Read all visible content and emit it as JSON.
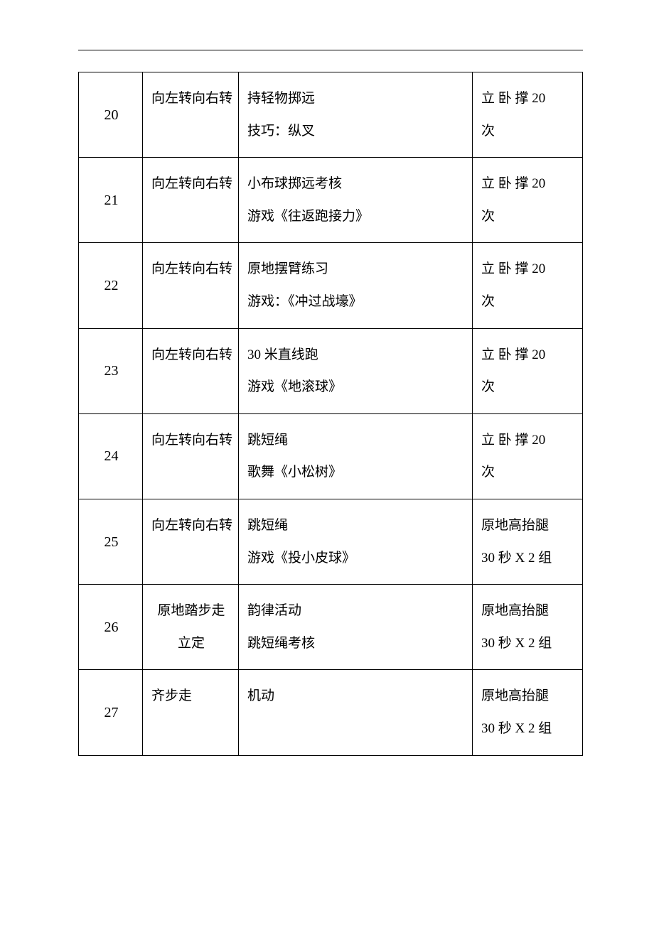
{
  "table": {
    "rows": [
      {
        "num": "20",
        "col1": "向左转向右转",
        "col2_l1": "持轻物掷远",
        "col2_l2": "技巧：纵叉",
        "col3_l1": "立 卧 撑 20",
        "col3_l2": "次"
      },
      {
        "num": "21",
        "col1": "向左转向右转",
        "col2_l1": "小布球掷远考核",
        "col2_l2": "游戏《往返跑接力》",
        "col3_l1": "立 卧 撑 20",
        "col3_l2": "次"
      },
      {
        "num": "22",
        "col1": "向左转向右转",
        "col2_l1": "原地摆臂练习",
        "col2_l2": "游戏：《冲过战壕》",
        "col3_l1": "立 卧 撑 20",
        "col3_l2": "次"
      },
      {
        "num": "23",
        "col1": "向左转向右转",
        "col2_l1": "30 米直线跑",
        "col2_l2": "游戏《地滚球》",
        "col3_l1": "立 卧 撑 20",
        "col3_l2": "次"
      },
      {
        "num": "24",
        "col1": "向左转向右转",
        "col2_l1": "跳短绳",
        "col2_l2": "歌舞《小松树》",
        "col3_l1": "立 卧 撑 20",
        "col3_l2": "次"
      },
      {
        "num": "25",
        "col1": "向左转向右转",
        "col2_l1": "跳短绳",
        "col2_l2": "游戏《投小皮球》",
        "col3_l1": "原地高抬腿",
        "col3_l2": "30 秒 X 2 组"
      },
      {
        "num": "26",
        "col1_l1": "原地踏步走",
        "col1_l2": "立定",
        "col2_l1": "韵律活动",
        "col2_l2": "跳短绳考核",
        "col3_l1": "原地高抬腿",
        "col3_l2": "30 秒 X 2 组"
      },
      {
        "num": "27",
        "col1": "齐步走",
        "col2_l1": "机动",
        "col2_l2": "",
        "col3_l1": "原地高抬腿",
        "col3_l2": "30 秒 X 2 组"
      }
    ]
  }
}
